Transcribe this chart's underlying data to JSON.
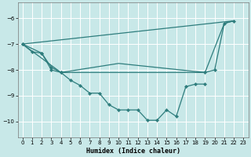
{
  "xlabel": "Humidex (Indice chaleur)",
  "xlim": [
    -0.5,
    23.5
  ],
  "ylim": [
    -10.6,
    -5.4
  ],
  "yticks": [
    -10,
    -9,
    -8,
    -7,
    -6
  ],
  "xticks": [
    0,
    1,
    2,
    3,
    4,
    5,
    6,
    7,
    8,
    9,
    10,
    11,
    12,
    13,
    14,
    15,
    16,
    17,
    18,
    19,
    20,
    21,
    22,
    23
  ],
  "bg_color": "#c8e8e8",
  "grid_color": "#ffffff",
  "line_color": "#2e7d7d",
  "line1_x": [
    0,
    1,
    2,
    3,
    4,
    5,
    6,
    7,
    8,
    9,
    10,
    11,
    12,
    13,
    14,
    15,
    16,
    17,
    18,
    19
  ],
  "line1_y": [
    -7.0,
    -7.3,
    -7.35,
    -8.0,
    -8.1,
    -8.4,
    -8.6,
    -8.9,
    -8.9,
    -9.35,
    -9.55,
    -9.55,
    -9.55,
    -9.95,
    -9.95,
    -9.55,
    -9.8,
    -8.65,
    -8.55,
    -8.55
  ],
  "line2_x": [
    0,
    22
  ],
  "line2_y": [
    -7.0,
    -6.1
  ],
  "line3_x": [
    0,
    2,
    3,
    4,
    19,
    20,
    21,
    22
  ],
  "line3_y": [
    -7.0,
    -7.35,
    -7.9,
    -8.1,
    -8.1,
    -8.0,
    -6.2,
    -6.1
  ],
  "line4_x": [
    0,
    4,
    10,
    19,
    21,
    22
  ],
  "line4_y": [
    -7.0,
    -8.1,
    -7.75,
    -8.1,
    -6.2,
    -6.1
  ]
}
